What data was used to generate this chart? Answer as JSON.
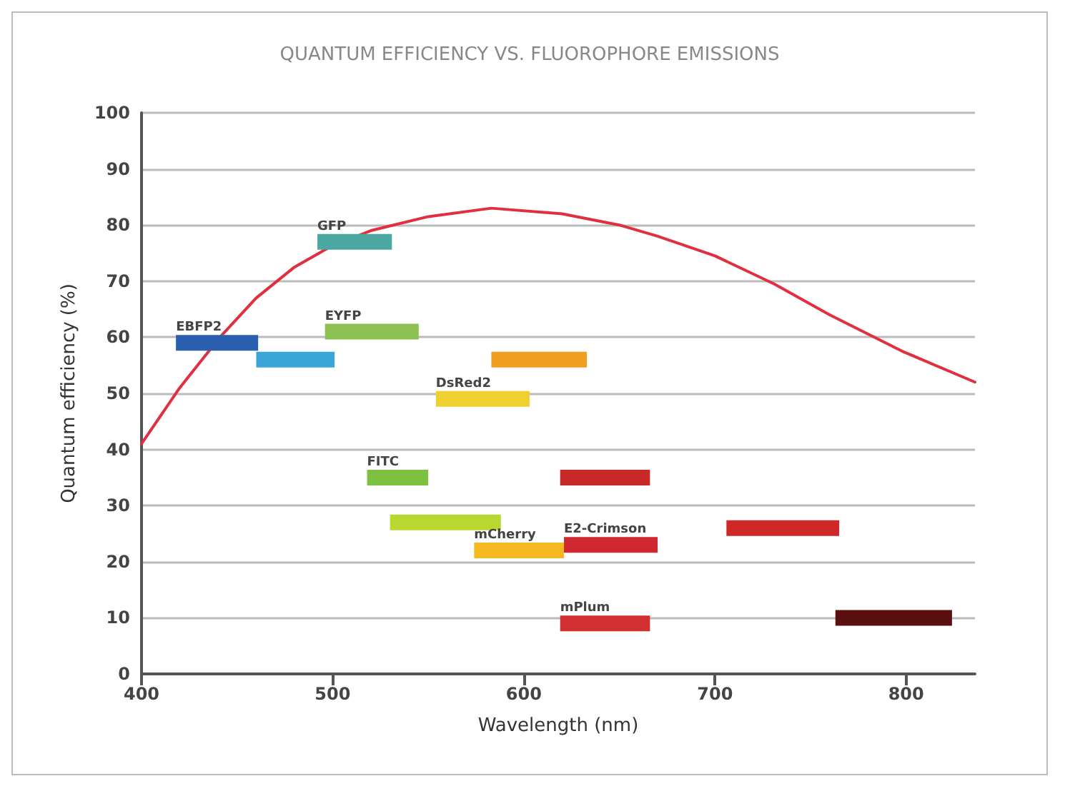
{
  "chart_data": {
    "type": "line",
    "title": "QUANTUM EFFICIENCY VS. FLUOROPHORE EMISSIONS",
    "xlabel": "Wavelength (nm)",
    "ylabel": "Quantum efficiency (%)",
    "xlim": [
      400,
      836
    ],
    "xticks": [
      400,
      500,
      600,
      700,
      800
    ],
    "ylim": [
      0,
      100
    ],
    "yticks": [
      0,
      10,
      20,
      30,
      40,
      50,
      60,
      70,
      80,
      90,
      100
    ],
    "grid": "y",
    "legend": false,
    "marker": "none",
    "series": [
      {
        "color": "#e03040",
        "x": [
          400,
          420,
          441,
          460,
          480,
          498,
          520,
          550,
          583,
          620,
          650,
          670,
          700,
          731,
          760,
          798,
          836
        ],
        "values": [
          41,
          51,
          60,
          67,
          72.5,
          76,
          79,
          81.5,
          83,
          82,
          80,
          78,
          74.5,
          69.5,
          64,
          57.5,
          52
        ]
      },
      {
        "name": "EBFP2",
        "color": "#2a5fb0",
        "x": [
          418,
          461
        ],
        "values": [
          59,
          59
        ]
      },
      {
        "color": "#3aa6d8",
        "x": [
          460,
          501
        ],
        "values": [
          56,
          56
        ]
      },
      {
        "name": "GFP",
        "color": "#4aa8a0",
        "x": [
          492,
          531
        ],
        "values": [
          77,
          77
        ]
      },
      {
        "name": "EYFP",
        "color": "#8cc050",
        "x": [
          496,
          545
        ],
        "values": [
          61,
          61
        ]
      },
      {
        "color": "#f0a020",
        "x": [
          583,
          633
        ],
        "values": [
          56,
          56
        ]
      },
      {
        "name": "DsRed2",
        "color": "#f0d030",
        "x": [
          554,
          603
        ],
        "values": [
          49,
          49
        ]
      },
      {
        "name": "FITC",
        "color": "#7cc040",
        "x": [
          518,
          550
        ],
        "values": [
          35,
          35
        ]
      },
      {
        "color": "#c82828",
        "x": [
          619,
          666
        ],
        "values": [
          35,
          35
        ]
      },
      {
        "color": "#b8d830",
        "x": [
          530,
          588
        ],
        "values": [
          27,
          27
        ]
      },
      {
        "name": "mCherry",
        "color": "#f4b820",
        "x": [
          574,
          621
        ],
        "values": [
          22,
          22
        ]
      },
      {
        "name": "E2-Crimson",
        "color": "#d02830",
        "x": [
          621,
          670
        ],
        "values": [
          23,
          23
        ]
      },
      {
        "color": "#d02828",
        "x": [
          706,
          765
        ],
        "values": [
          26,
          26
        ]
      },
      {
        "name": "mPlum",
        "color": "#d03030",
        "x": [
          619,
          666
        ],
        "values": [
          9,
          9
        ]
      },
      {
        "color": "#5a1010",
        "x": [
          763,
          824
        ],
        "values": [
          10,
          10
        ]
      }
    ]
  }
}
